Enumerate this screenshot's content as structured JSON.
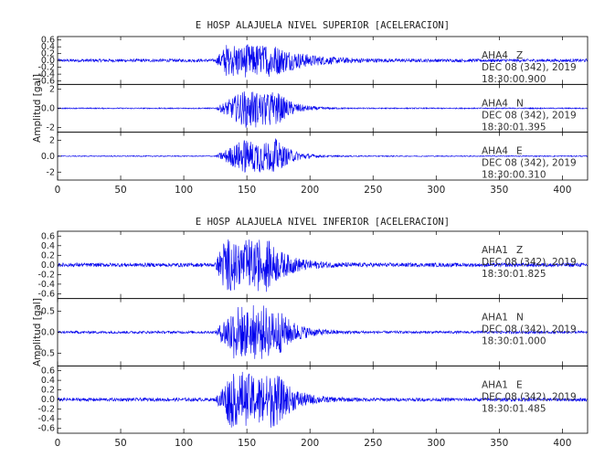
{
  "chart_data": [
    {
      "type": "line",
      "title": "E HOSP ALAJUELA NIVEL SUPERIOR [ACELERACION]",
      "ylabel": "Amplitud [gal]",
      "xlim": [
        0,
        420
      ],
      "x_ticks": [
        0,
        50,
        100,
        150,
        200,
        250,
        300,
        350,
        400
      ],
      "series": [
        {
          "name": "AHA4 Z",
          "date": "DEC 08 (342), 2019",
          "time": "18:30:00.900",
          "ylim": [
            -0.7,
            0.7
          ],
          "y_ticks": [
            -0.6,
            -0.4,
            -0.2,
            0.0,
            0.2,
            0.4,
            0.6
          ],
          "envelope": {
            "noise": 0.045,
            "peak": 0.55,
            "onset": 125,
            "peak_start": 135,
            "peak_end": 168,
            "decay": 60
          }
        },
        {
          "name": "AHA4 N",
          "date": "DEC 08 (342), 2019",
          "time": "18:30:01.395",
          "ylim": [
            -2.5,
            2.5
          ],
          "y_ticks": [
            -2,
            0,
            2
          ],
          "envelope": {
            "noise": 0.06,
            "peak": 2.1,
            "onset": 125,
            "peak_start": 150,
            "peak_end": 172,
            "decay": 30
          }
        },
        {
          "name": "AHA4 E",
          "date": "DEC 08 (342), 2019",
          "time": "18:30:00.310",
          "ylim": [
            -3,
            3
          ],
          "y_ticks": [
            -2,
            0,
            2
          ],
          "envelope": {
            "noise": 0.06,
            "peak": 2.4,
            "onset": 125,
            "peak_start": 150,
            "peak_end": 172,
            "decay": 30
          }
        }
      ]
    },
    {
      "type": "line",
      "title": "E HOSP ALAJUELA NIVEL INFERIOR [ACELERACION]",
      "ylabel": "Amplitud [gal]",
      "xlim": [
        0,
        420
      ],
      "x_ticks": [
        0,
        50,
        100,
        150,
        200,
        250,
        300,
        350,
        400
      ],
      "series": [
        {
          "name": "AHA1 Z",
          "date": "DEC 08 (342), 2019",
          "time": "18:30:01.825",
          "ylim": [
            -0.7,
            0.7
          ],
          "y_ticks": [
            -0.6,
            -0.4,
            -0.2,
            0.0,
            0.2,
            0.4,
            0.6
          ],
          "envelope": {
            "noise": 0.04,
            "peak": 0.58,
            "onset": 125,
            "peak_start": 132,
            "peak_end": 165,
            "decay": 40
          }
        },
        {
          "name": "AHA1 N",
          "date": "DEC 08 (342), 2019",
          "time": "18:30:01.000",
          "ylim": [
            -0.8,
            0.8
          ],
          "y_ticks": [
            -0.5,
            0.0,
            0.5
          ],
          "envelope": {
            "noise": 0.03,
            "peak": 0.68,
            "onset": 125,
            "peak_start": 140,
            "peak_end": 172,
            "decay": 35
          }
        },
        {
          "name": "AHA1 E",
          "date": "DEC 08 (342), 2019",
          "time": "18:30:01.485",
          "ylim": [
            -0.7,
            0.7
          ],
          "y_ticks": [
            -0.6,
            -0.4,
            -0.2,
            0.0,
            0.2,
            0.4,
            0.6
          ],
          "envelope": {
            "noise": 0.035,
            "peak": 0.62,
            "onset": 125,
            "peak_start": 138,
            "peak_end": 172,
            "decay": 35
          }
        }
      ]
    }
  ],
  "colors": {
    "trace": "#0000ee",
    "axes": "#000000",
    "background": "#ffffff"
  }
}
